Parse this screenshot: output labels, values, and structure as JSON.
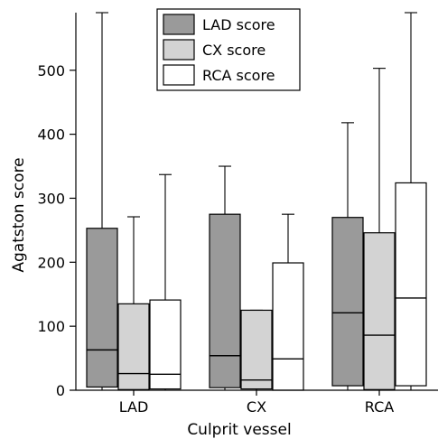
{
  "chart_data": {
    "type": "box",
    "title": "",
    "xlabel": "Culprit vessel",
    "ylabel": "Agatston score",
    "ylim": [
      0,
      590
    ],
    "yticks": [
      0,
      100,
      200,
      300,
      400,
      500
    ],
    "categories": [
      "LAD",
      "CX",
      "RCA"
    ],
    "legend_position": "top-center",
    "grid": false,
    "series": [
      {
        "name": "LAD score",
        "color": "#9a9a9a",
        "boxes": [
          {
            "category": "LAD",
            "min": 0,
            "q1": 5,
            "median": 63,
            "q3": 253,
            "whisker_high": 590
          },
          {
            "category": "CX",
            "min": 0,
            "q1": 4,
            "median": 54,
            "q3": 275,
            "whisker_high": 350
          },
          {
            "category": "RCA",
            "min": 0,
            "q1": 7,
            "median": 121,
            "q3": 270,
            "whisker_high": 418
          }
        ]
      },
      {
        "name": "CX score",
        "color": "#d3d3d3",
        "boxes": [
          {
            "category": "LAD",
            "min": 0,
            "q1": 1,
            "median": 26,
            "q3": 135,
            "whisker_high": 271
          },
          {
            "category": "CX",
            "min": 0,
            "q1": 2,
            "median": 16,
            "q3": 125,
            "whisker_high": 125
          },
          {
            "category": "RCA",
            "min": 0,
            "q1": 1,
            "median": 86,
            "q3": 246,
            "whisker_high": 503
          }
        ]
      },
      {
        "name": "RCA score",
        "color": "#ffffff",
        "boxes": [
          {
            "category": "LAD",
            "min": 0,
            "q1": 2,
            "median": 25,
            "q3": 141,
            "whisker_high": 337
          },
          {
            "category": "CX",
            "min": 0,
            "q1": 0,
            "median": 49,
            "q3": 199,
            "whisker_high": 275
          },
          {
            "category": "RCA",
            "min": 0,
            "q1": 7,
            "median": 144,
            "q3": 324,
            "whisker_high": 590
          }
        ]
      }
    ]
  }
}
